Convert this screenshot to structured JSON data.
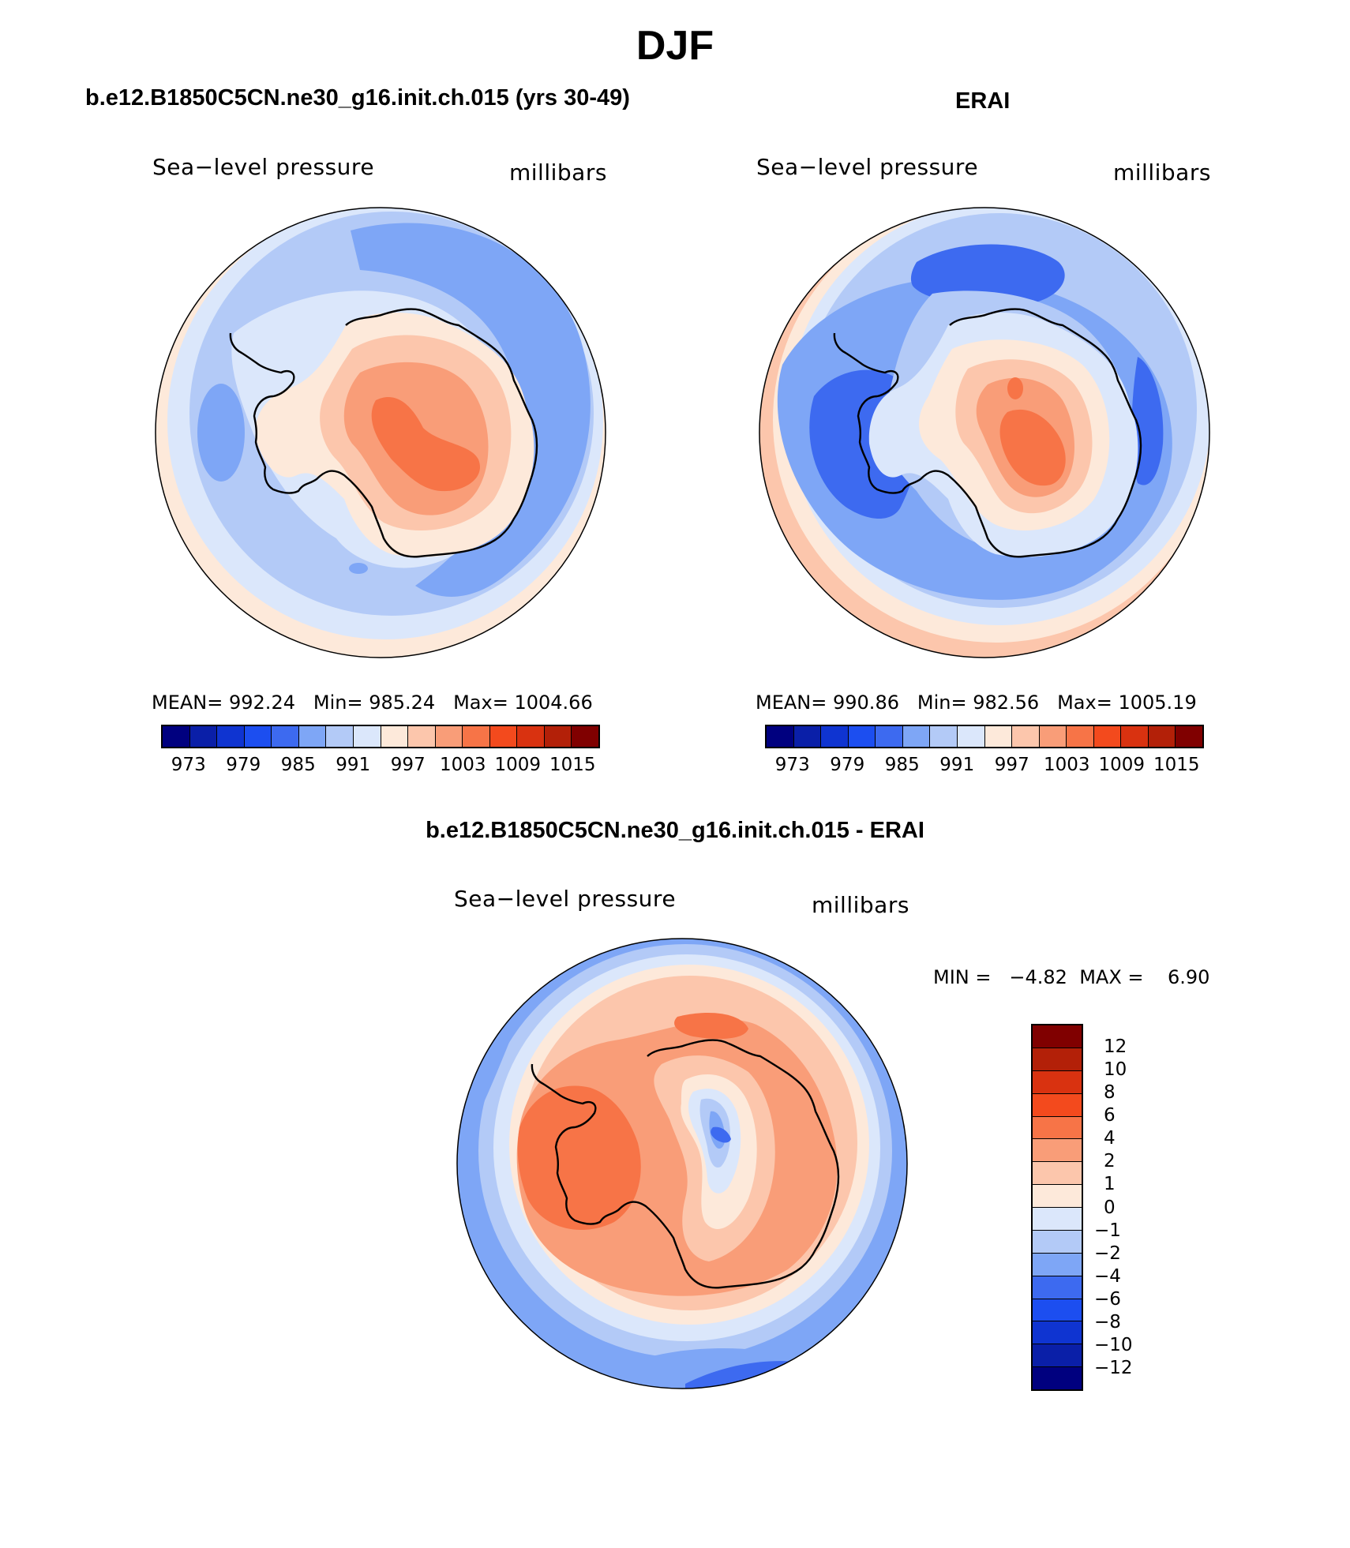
{
  "title": "DJF",
  "panels": [
    {
      "title": "b.e12.B1850C5CN.ne30_g16.init.ch.015 (yrs 30-49)",
      "variable": "Sea−level pressure",
      "units": "millibars",
      "stats": {
        "mean_label": "MEAN=",
        "mean": "992.24",
        "min_label": "Min=",
        "min": "985.24",
        "max_label": "Max=",
        "max": "1004.66"
      }
    },
    {
      "title": "ERAI",
      "variable": "Sea−level pressure",
      "units": "millibars",
      "stats": {
        "mean_label": "MEAN=",
        "mean": "990.86",
        "min_label": "Min=",
        "min": "982.56",
        "max_label": "Max=",
        "max": "1005.19"
      }
    },
    {
      "title": "b.e12.B1850C5CN.ne30_g16.init.ch.015 - ERAI",
      "variable": "Sea−level pressure",
      "units": "millibars",
      "stats": {
        "min_label": "MIN =",
        "min": "−4.82",
        "max_label": "MAX =",
        "max": "6.90"
      }
    }
  ],
  "colorbar_abs": {
    "colors": [
      "#00007f",
      "#0a1fa8",
      "#0f34d1",
      "#1c4ef0",
      "#3d6af0",
      "#7ea6f6",
      "#b3caf7",
      "#dbe7fb",
      "#fde9da",
      "#fcc6ac",
      "#f99d78",
      "#f77447",
      "#f34a1d",
      "#d93210",
      "#b32008",
      "#800000"
    ],
    "ticks": [
      "973",
      "979",
      "985",
      "991",
      "997",
      "1003",
      "1009",
      "1015"
    ]
  },
  "colorbar_diff": {
    "colors": [
      "#800000",
      "#b32008",
      "#d93210",
      "#f34a1d",
      "#f77447",
      "#f99d78",
      "#fcc6ac",
      "#fde9da",
      "#dbe7fb",
      "#b3caf7",
      "#7ea6f6",
      "#3d6af0",
      "#1c4ef0",
      "#0f34d1",
      "#0a1fa8",
      "#00007f"
    ],
    "ticks": [
      "12",
      "10",
      "8",
      "6",
      "4",
      "2",
      "1",
      "0",
      "−1",
      "−2",
      "−4",
      "−6",
      "−8",
      "−10",
      "−12"
    ]
  },
  "chart_data": [
    {
      "type": "heatmap",
      "title": "b.e12.B1850C5CN.ne30_g16.init.ch.015 (yrs 30-49)",
      "projection": "south polar stereographic",
      "variable": "Sea−level pressure",
      "units": "millibars",
      "mean": 992.24,
      "min": 985.24,
      "max": 1004.66,
      "contour_levels": [
        973,
        975,
        977,
        979,
        981,
        983,
        985,
        987,
        989,
        991,
        993,
        995,
        997,
        999,
        1001,
        1003,
        1005,
        1007,
        1009,
        1011,
        1013,
        1015
      ]
    },
    {
      "type": "heatmap",
      "title": "ERAI",
      "projection": "south polar stereographic",
      "variable": "Sea−level pressure",
      "units": "millibars",
      "mean": 990.86,
      "min": 982.56,
      "max": 1005.19
    },
    {
      "type": "heatmap",
      "title": "b.e12.B1850C5CN.ne30_g16.init.ch.015 - ERAI",
      "projection": "south polar stereographic",
      "variable": "Sea−level pressure",
      "units": "millibars",
      "min": -4.82,
      "max": 6.9,
      "contour_levels": [
        -12,
        -10,
        -8,
        -6,
        -4,
        -2,
        -1,
        0,
        1,
        2,
        4,
        6,
        8,
        10,
        12
      ]
    }
  ]
}
